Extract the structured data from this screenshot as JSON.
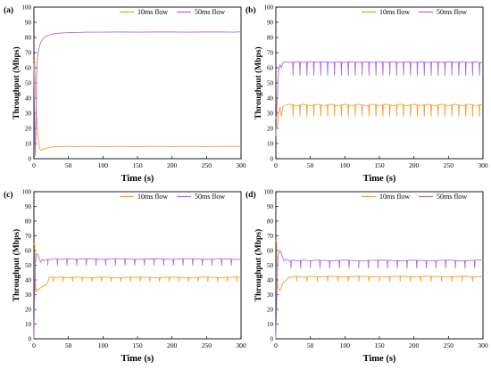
{
  "figure": {
    "colors": {
      "short_flow": "#f5a02a",
      "long_flow": "#b06be0",
      "axis": "#000000",
      "background": "#ffffff"
    }
  },
  "chart_data": [
    {
      "panel_label": "(a)",
      "type": "line",
      "xlabel": "Time (s)",
      "ylabel": "Throughput (Mbps)",
      "xlim": [
        0,
        300
      ],
      "ylim": [
        0,
        100
      ],
      "xticks": [
        0,
        50,
        100,
        150,
        200,
        250,
        300
      ],
      "yticks": [
        0,
        10,
        20,
        30,
        40,
        50,
        60,
        70,
        80,
        90,
        100
      ],
      "legend_position": "top-right",
      "grid": false,
      "series": [
        {
          "name": "10ms flow",
          "color": "#f5a02a",
          "x": [
            0,
            1,
            2,
            3,
            4,
            6,
            8,
            10,
            15,
            20,
            25,
            30,
            40,
            50,
            60,
            80,
            100,
            120,
            150,
            180,
            200,
            220,
            250,
            270,
            290,
            300
          ],
          "y": [
            64,
            66,
            50,
            38,
            28,
            15,
            7,
            5.5,
            6.5,
            7.2,
            7.6,
            7.8,
            8,
            8.1,
            8,
            8.1,
            8,
            8.1,
            8,
            8.1,
            8,
            8.1,
            8,
            8.1,
            8,
            8.3
          ]
        },
        {
          "name": "50ms flow",
          "color": "#b06be0",
          "x": [
            0,
            1,
            2,
            3,
            4,
            5,
            6,
            8,
            10,
            15,
            20,
            25,
            30,
            40,
            50,
            60,
            80,
            100,
            120,
            150,
            180,
            200,
            220,
            250,
            270,
            290,
            300
          ],
          "y": [
            63,
            30,
            2,
            20,
            55,
            66,
            70,
            74,
            77,
            80,
            81.5,
            82,
            82.5,
            83,
            83.2,
            83.3,
            83.5,
            83.5,
            83.6,
            83.5,
            83.6,
            83.6,
            83.5,
            83.6,
            83.6,
            83.5,
            83.7
          ]
        }
      ]
    },
    {
      "panel_label": "(b)",
      "type": "line",
      "xlabel": "Time (s)",
      "ylabel": "Throughput (Mbps)",
      "xlim": [
        0,
        300
      ],
      "ylim": [
        0,
        100
      ],
      "xticks": [
        0,
        50,
        100,
        150,
        200,
        250,
        300
      ],
      "yticks": [
        0,
        10,
        20,
        30,
        40,
        50,
        60,
        70,
        80,
        90,
        100
      ],
      "legend_position": "top-right",
      "grid": false,
      "series": [
        {
          "name": "10ms flow",
          "color": "#f5a02a",
          "x": [
            0,
            2,
            4,
            6,
            8,
            10,
            12,
            20,
            30,
            40,
            50,
            60,
            70,
            80,
            90,
            100,
            110,
            120,
            130,
            140,
            150,
            160,
            170,
            180,
            190,
            200,
            210,
            220,
            230,
            240,
            250,
            260,
            270,
            280,
            290,
            300
          ],
          "y": [
            28,
            20,
            30,
            34,
            28,
            34,
            35,
            36,
            35,
            36,
            35,
            36,
            35,
            36,
            35,
            36,
            35,
            36,
            35,
            36,
            35,
            36,
            35,
            36,
            35,
            36,
            35,
            36,
            35,
            36,
            35,
            36,
            35,
            36,
            35,
            36
          ],
          "dips_at": [
            25,
            35,
            45,
            55,
            65,
            75,
            85,
            95,
            105,
            115,
            125,
            135,
            145,
            155,
            165,
            175,
            185,
            195,
            205,
            215,
            225,
            235,
            245,
            255,
            265,
            275,
            285,
            295
          ],
          "dip_to": 28
        },
        {
          "name": "50ms flow",
          "color": "#b06be0",
          "x": [
            0,
            2,
            4,
            6,
            8,
            10,
            12,
            20,
            30,
            40,
            50,
            60,
            70,
            80,
            90,
            100,
            110,
            120,
            130,
            140,
            150,
            160,
            170,
            180,
            190,
            200,
            210,
            220,
            230,
            240,
            250,
            260,
            270,
            280,
            290,
            300
          ],
          "y": [
            15,
            40,
            58,
            62,
            60,
            63,
            64,
            63.5,
            64,
            63.5,
            64,
            63.5,
            64,
            63.5,
            64,
            63.5,
            64,
            63.5,
            64,
            63.5,
            64,
            63.5,
            64,
            63.5,
            64,
            63.5,
            64,
            63.5,
            64,
            63.5,
            64,
            63.5,
            64,
            63.5,
            64,
            63
          ],
          "dips_at": [
            25,
            35,
            45,
            55,
            65,
            75,
            85,
            95,
            105,
            115,
            125,
            135,
            145,
            155,
            165,
            175,
            185,
            195,
            205,
            215,
            225,
            235,
            245,
            255,
            265,
            275,
            285,
            295
          ],
          "dip_to": 55
        }
      ]
    },
    {
      "panel_label": "(c)",
      "type": "line",
      "xlabel": "Time (s)",
      "ylabel": "Throughput (Mbps)",
      "xlim": [
        0,
        300
      ],
      "ylim": [
        0,
        100
      ],
      "xticks": [
        0,
        50,
        100,
        150,
        200,
        250,
        300
      ],
      "yticks": [
        0,
        10,
        20,
        30,
        40,
        50,
        60,
        70,
        80,
        90,
        100
      ],
      "legend_position": "top-right",
      "grid": false,
      "series": [
        {
          "name": "10ms flow",
          "color": "#f5a02a",
          "x": [
            0,
            1,
            2,
            3,
            4,
            6,
            8,
            10,
            15,
            20,
            22,
            25,
            30,
            40,
            50,
            60,
            80,
            100,
            120,
            150,
            180,
            200,
            220,
            250,
            270,
            290,
            300
          ],
          "y": [
            64,
            66,
            40,
            32,
            34,
            33,
            34,
            35,
            36,
            38,
            42,
            42,
            41.5,
            42,
            41.5,
            42,
            41.5,
            42,
            41.5,
            42,
            41.5,
            42,
            41.5,
            42,
            41.5,
            42,
            42
          ],
          "dips_at": [
            28,
            42,
            56,
            70,
            84,
            98,
            112,
            126,
            140,
            154,
            168,
            182,
            196,
            210,
            224,
            238,
            252,
            266,
            280,
            294
          ],
          "dip_to": 39
        },
        {
          "name": "50ms flow",
          "color": "#b06be0",
          "x": [
            0,
            1,
            2,
            3,
            4,
            6,
            8,
            10,
            12,
            15,
            20,
            25,
            30,
            40,
            50,
            60,
            80,
            100,
            120,
            150,
            180,
            200,
            220,
            250,
            270,
            290,
            300
          ],
          "y": [
            0,
            30,
            50,
            57,
            58,
            57,
            54,
            52,
            54,
            53,
            54,
            54,
            54.5,
            54,
            54.5,
            54,
            54.5,
            54,
            54.5,
            54,
            54.5,
            54,
            54.5,
            54,
            54.5,
            54,
            54
          ],
          "dips_at": [
            20,
            34,
            48,
            62,
            76,
            90,
            104,
            118,
            132,
            146,
            160,
            174,
            188,
            202,
            216,
            230,
            244,
            258,
            272,
            286
          ],
          "dip_to": 50
        }
      ]
    },
    {
      "panel_label": "(d)",
      "type": "line",
      "xlabel": "Time (s)",
      "ylabel": "Throughput (Mbps)",
      "xlim": [
        0,
        300
      ],
      "ylim": [
        0,
        100
      ],
      "xticks": [
        0,
        50,
        100,
        150,
        200,
        250,
        300
      ],
      "yticks": [
        0,
        10,
        20,
        30,
        40,
        50,
        60,
        70,
        80,
        90,
        100
      ],
      "legend_position": "top-right",
      "grid": false,
      "series": [
        {
          "name": "10ms flow",
          "color": "#f5a02a",
          "x": [
            0,
            1,
            2,
            3,
            4,
            6,
            8,
            10,
            15,
            20,
            25,
            30,
            40,
            50,
            60,
            80,
            100,
            120,
            150,
            180,
            200,
            220,
            250,
            270,
            290,
            300
          ],
          "y": [
            66,
            68,
            40,
            35,
            34,
            33,
            35,
            38,
            40,
            42,
            42,
            42.5,
            42,
            42.5,
            42,
            42.5,
            42,
            42.5,
            42,
            42.5,
            42,
            42.5,
            42,
            42.5,
            42,
            42.5
          ],
          "dips_at": [
            30,
            45,
            60,
            75,
            90,
            105,
            120,
            135,
            150,
            165,
            180,
            195,
            210,
            225,
            240,
            255,
            270,
            285
          ],
          "dip_to": 39
        },
        {
          "name": "50ms flow",
          "color": "#b06be0",
          "x": [
            0,
            1,
            2,
            3,
            4,
            6,
            8,
            10,
            12,
            15,
            20,
            25,
            30,
            40,
            50,
            60,
            80,
            100,
            120,
            150,
            180,
            200,
            220,
            250,
            270,
            290,
            300
          ],
          "y": [
            0,
            20,
            45,
            55,
            58,
            60,
            58,
            55,
            53,
            54,
            53,
            53.5,
            53,
            53.5,
            53,
            53.5,
            53,
            53.5,
            53,
            53.5,
            53,
            53.5,
            53,
            53.5,
            53,
            53.5,
            53.5
          ],
          "dips_at": [
            22,
            36,
            50,
            64,
            78,
            92,
            106,
            120,
            134,
            148,
            162,
            176,
            190,
            204,
            218,
            232,
            246,
            260,
            274,
            288
          ],
          "dip_to": 48
        }
      ]
    }
  ]
}
